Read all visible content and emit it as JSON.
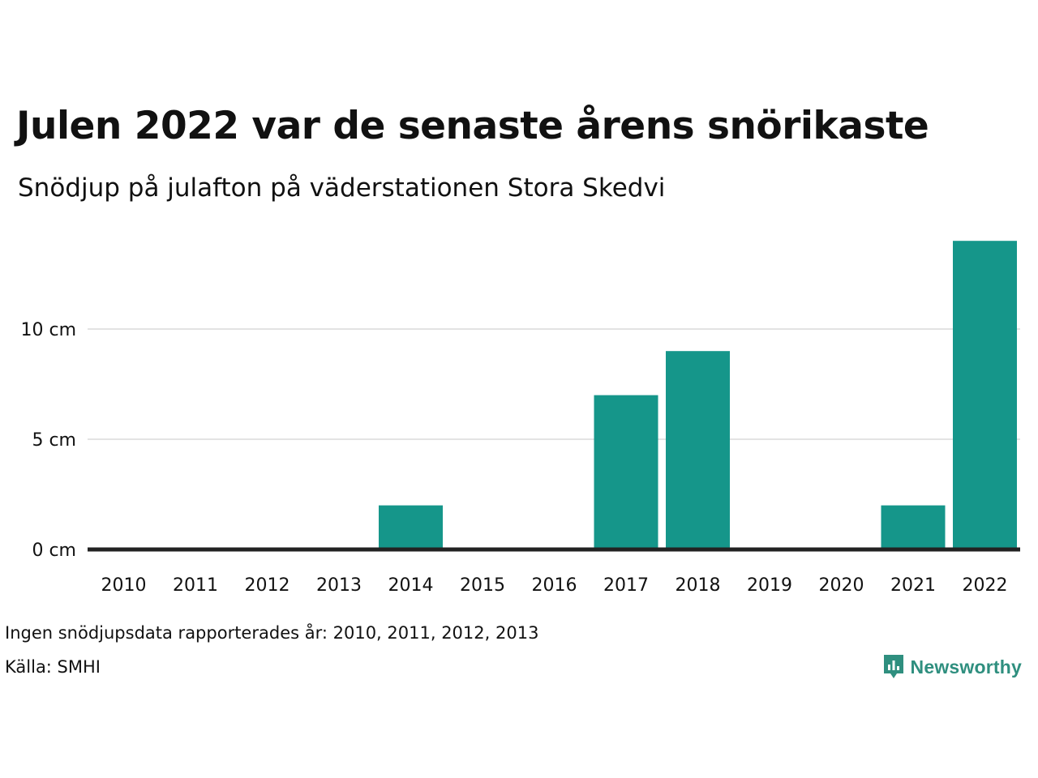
{
  "colors": {
    "bar": "#15968a",
    "grid": "#e3e3e3",
    "baseline": "#222222",
    "brand": "#2f8f7f",
    "text": "#111111"
  },
  "title": "Julen 2022 var de senaste årens snörikaste",
  "subtitle": "Snödjup på julafton på väderstationen Stora Skedvi",
  "footnote": "Ingen snödjupsdata rapporterades år: 2010, 2011, 2012, 2013",
  "source": "Källa: SMHI",
  "brand": {
    "name": "Newsworthy",
    "icon": "newsworthy-logo-icon"
  },
  "chart_data": {
    "type": "bar",
    "categories": [
      "2010",
      "2011",
      "2012",
      "2013",
      "2014",
      "2015",
      "2016",
      "2017",
      "2018",
      "2019",
      "2020",
      "2021",
      "2022"
    ],
    "values": [
      0,
      0,
      0,
      0,
      2,
      0,
      0,
      7,
      9,
      0,
      0,
      2,
      14
    ],
    "y_ticks": [
      {
        "value": 0,
        "label": "0 cm"
      },
      {
        "value": 5,
        "label": "5 cm"
      },
      {
        "value": 10,
        "label": "10 cm"
      }
    ],
    "ylim": [
      0,
      14
    ],
    "grid": true,
    "legend": "none"
  }
}
